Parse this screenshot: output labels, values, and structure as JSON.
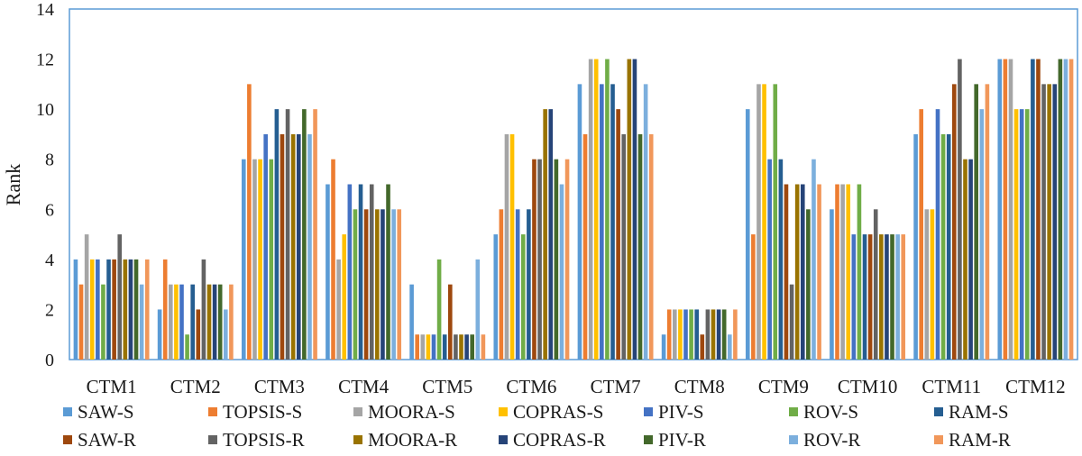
{
  "chart_data": {
    "type": "bar",
    "ylabel": "Rank",
    "xlabel": "",
    "ylim": [
      0,
      14
    ],
    "yticks": [
      "0",
      "2",
      "4",
      "6",
      "8",
      "10",
      "12",
      "14"
    ],
    "grid": false,
    "legend_position": "bottom",
    "categories": [
      "CTM1",
      "CTM2",
      "CTM3",
      "CTM4",
      "CTM5",
      "CTM6",
      "CTM7",
      "CTM8",
      "CTM9",
      "CTM10",
      "CTM11",
      "CTM12"
    ],
    "series": [
      {
        "name": "SAW-S",
        "color": "#5B9BD5",
        "values": [
          4,
          2,
          8,
          7,
          3,
          5,
          11,
          1,
          10,
          6,
          9,
          12
        ]
      },
      {
        "name": "TOPSIS-S",
        "color": "#ED7D31",
        "values": [
          3,
          4,
          11,
          8,
          1,
          6,
          9,
          2,
          5,
          7,
          10,
          12
        ]
      },
      {
        "name": "MOORA-S",
        "color": "#A5A5A5",
        "values": [
          5,
          3,
          8,
          4,
          1,
          9,
          12,
          2,
          11,
          7,
          6,
          12
        ]
      },
      {
        "name": "COPRAS-S",
        "color": "#FFC000",
        "values": [
          4,
          3,
          8,
          5,
          1,
          9,
          12,
          2,
          11,
          7,
          6,
          10
        ]
      },
      {
        "name": "PIV-S",
        "color": "#4472C4",
        "values": [
          4,
          3,
          9,
          7,
          1,
          6,
          11,
          2,
          8,
          5,
          10,
          10
        ]
      },
      {
        "name": "ROV-S",
        "color": "#70AD47",
        "values": [
          3,
          1,
          8,
          6,
          4,
          5,
          12,
          2,
          11,
          7,
          9,
          10
        ]
      },
      {
        "name": "RAM-S",
        "color": "#255E91",
        "values": [
          4,
          3,
          10,
          7,
          1,
          6,
          11,
          2,
          8,
          5,
          9,
          12
        ]
      },
      {
        "name": "SAW-R",
        "color": "#9E480E",
        "values": [
          4,
          2,
          9,
          6,
          3,
          8,
          10,
          1,
          7,
          5,
          11,
          12
        ]
      },
      {
        "name": "TOPSIS-R",
        "color": "#636363",
        "values": [
          5,
          4,
          10,
          7,
          1,
          8,
          9,
          2,
          3,
          6,
          12,
          11
        ]
      },
      {
        "name": "MOORA-R",
        "color": "#997300",
        "values": [
          4,
          3,
          9,
          6,
          1,
          10,
          12,
          2,
          7,
          5,
          8,
          11
        ]
      },
      {
        "name": "COPRAS-R",
        "color": "#264478",
        "values": [
          4,
          3,
          9,
          6,
          1,
          10,
          12,
          2,
          7,
          5,
          8,
          11
        ]
      },
      {
        "name": "PIV-R",
        "color": "#43682B",
        "values": [
          4,
          3,
          10,
          7,
          1,
          8,
          9,
          2,
          6,
          5,
          11,
          12
        ]
      },
      {
        "name": "ROV-R",
        "color": "#7CAFDD",
        "values": [
          3,
          2,
          9,
          6,
          4,
          7,
          11,
          1,
          8,
          5,
          10,
          12
        ]
      },
      {
        "name": "RAM-R",
        "color": "#F1975A",
        "values": [
          4,
          3,
          10,
          6,
          1,
          8,
          9,
          2,
          7,
          5,
          11,
          12
        ]
      }
    ]
  }
}
